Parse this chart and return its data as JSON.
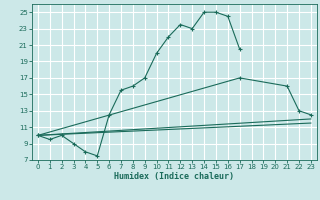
{
  "xlabel": "Humidex (Indice chaleur)",
  "background_color": "#cce8e8",
  "grid_color": "#ffffff",
  "line_color": "#1a6b5a",
  "xlim": [
    -0.5,
    23.5
  ],
  "ylim": [
    7,
    26
  ],
  "xticks": [
    0,
    1,
    2,
    3,
    4,
    5,
    6,
    7,
    8,
    9,
    10,
    11,
    12,
    13,
    14,
    15,
    16,
    17,
    18,
    19,
    20,
    21,
    22,
    23
  ],
  "yticks": [
    7,
    9,
    11,
    13,
    15,
    17,
    19,
    21,
    23,
    25
  ],
  "line1_x": [
    0,
    1,
    2,
    3,
    4,
    5,
    6,
    7,
    8,
    9,
    10,
    11,
    12,
    13,
    14,
    15,
    16,
    17
  ],
  "line1_y": [
    10,
    9.5,
    10,
    9,
    8,
    7.5,
    12.5,
    15.5,
    16,
    17,
    20,
    22,
    23.5,
    23,
    25,
    25,
    24.5,
    20.5
  ],
  "line2_x": [
    0,
    17,
    21,
    22,
    23
  ],
  "line2_y": [
    10,
    17,
    16,
    13,
    12.5
  ],
  "line3_x": [
    0,
    23
  ],
  "line3_y": [
    10,
    12.0
  ],
  "line4_x": [
    0,
    23
  ],
  "line4_y": [
    10,
    11.5
  ]
}
